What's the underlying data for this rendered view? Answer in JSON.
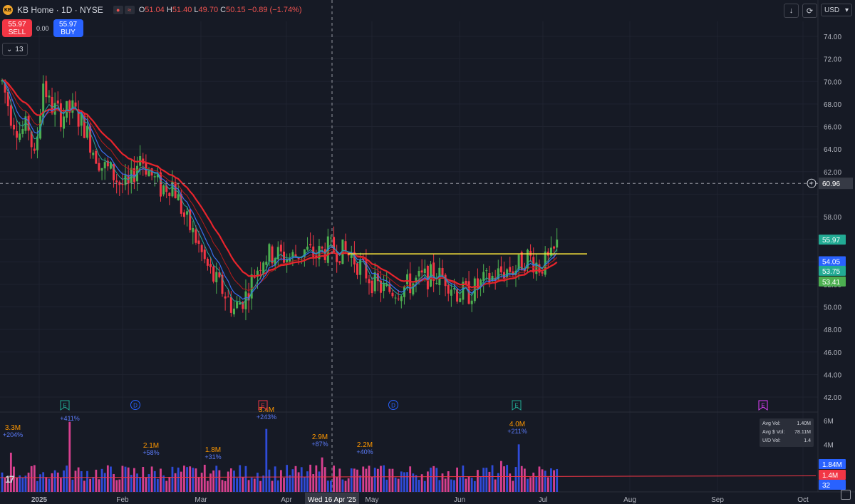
{
  "header": {
    "symbol_label": "KB Home · 1D · NYSE",
    "logo_text": "KB",
    "ohlc": {
      "o_label": "O",
      "o": "51.04",
      "h_label": "H",
      "h": "51.40",
      "l_label": "L",
      "l": "49.70",
      "c_label": "C",
      "c": "50.15",
      "change": "−0.89 (−1.74%)"
    }
  },
  "trade": {
    "sell_price": "55.97",
    "sell_label": "SELL",
    "spread": "0.00",
    "buy_price": "55.97",
    "buy_label": "BUY"
  },
  "indicator_toggle": {
    "count": "13"
  },
  "top_right": {
    "currency": "USD"
  },
  "price_axis": {
    "ticks": [
      "74.00",
      "72.00",
      "70.00",
      "68.00",
      "66.00",
      "64.00",
      "62.00",
      "58.00",
      "56.00",
      "52.00",
      "50.00",
      "48.00",
      "46.00",
      "44.00",
      "42.00"
    ],
    "crosshair_label": "60.96",
    "labels": [
      {
        "text": "55.97",
        "color": "#22ab94"
      },
      {
        "text": "54.05",
        "color": "#2962ff"
      },
      {
        "text": "53.75",
        "color": "#22ab94"
      },
      {
        "text": "53.41",
        "color": "#4caf50"
      }
    ]
  },
  "volume_axis": {
    "ticks": [
      "6M",
      "4M"
    ],
    "labels": [
      {
        "text": "1.84M",
        "color": "#2962ff"
      },
      {
        "text": "1.4M",
        "color": "#f23645"
      },
      {
        "text": "32",
        "color": "#2962ff"
      }
    ]
  },
  "time_axis": {
    "labels": [
      "2025",
      "Feb",
      "Mar",
      "Apr",
      "May",
      "Jun",
      "Jul",
      "Aug",
      "Sep",
      "Oct"
    ],
    "crosshair_label": "Wed 16 Apr '25"
  },
  "events": [
    {
      "type": "E",
      "color": "#22ab94"
    },
    {
      "type": "D",
      "color": "#2962ff"
    },
    {
      "type": "E",
      "color": "#f23645"
    },
    {
      "type": "D",
      "color": "#2962ff"
    },
    {
      "type": "E",
      "color": "#22ab94"
    },
    {
      "type": "E",
      "color": "#e040fb"
    }
  ],
  "volume_annotations": [
    {
      "vol": "3.3M",
      "pct": "+204%"
    },
    {
      "vol": "",
      "pct": "+411%"
    },
    {
      "vol": "2.1M",
      "pct": "+58%"
    },
    {
      "vol": "1.8M",
      "pct": "+31%"
    },
    {
      "vol": "3.4M",
      "pct": "+243%"
    },
    {
      "vol": "2.9M",
      "pct": "+87%"
    },
    {
      "vol": "2.2M",
      "pct": "+40%"
    },
    {
      "vol": "4.0M",
      "pct": "+211%"
    }
  ],
  "vol_stats": {
    "avg_vol_label": "Avg Vol:",
    "avg_vol": "1.40M",
    "avg_dollar_label": "Avg $ Vol:",
    "avg_dollar": "78.11M",
    "ud_label": "U/D Vol:",
    "ud": "1.4"
  },
  "colors": {
    "up": "#4caf50",
    "down": "#f23645",
    "bg": "#161a25",
    "grid": "#1f2330",
    "yellow": "#ffeb3b",
    "ema_red": "#e8242c",
    "ema_blue": "#3b6ff0",
    "ema_green": "#26a69a",
    "vol_blue": "#2f4bd8",
    "vol_pink": "#d7408f"
  }
}
